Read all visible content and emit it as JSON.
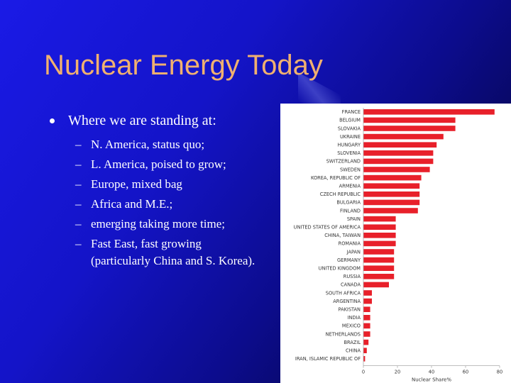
{
  "slide": {
    "title": "Nuclear Energy Today",
    "bullet": "Where we are standing at:",
    "sub_items": [
      "N. America, status quo;",
      "L. America, poised to grow;",
      "Europe, mixed bag",
      "Africa and M.E.;",
      "emerging taking more time;",
      "Fast East, fast growing (particularly China and S. Korea)."
    ],
    "dash": "–"
  },
  "chart_data": {
    "type": "bar",
    "orientation": "horizontal",
    "categories": [
      "FRANCE",
      "BELGIUM",
      "SLOVAKIA",
      "UKRAINE",
      "HUNGARY",
      "SLOVENIA",
      "SWITZERLAND",
      "SWEDEN",
      "KOREA, REPUBLIC OF",
      "ARMENIA",
      "CZECH REPUBLIC",
      "BULGARIA",
      "FINLAND",
      "SPAIN",
      "UNITED STATES OF AMERICA",
      "CHINA, TAIWAN",
      "ROMANIA",
      "JAPAN",
      "GERMANY",
      "UNITED KINGDOM",
      "RUSSIA",
      "CANADA",
      "SOUTH AFRICA",
      "ARGENTINA",
      "PAKISTAN",
      "INDIA",
      "MEXICO",
      "NETHERLANDS",
      "BRAZIL",
      "CHINA",
      "IRAN, ISLAMIC REPUBLIC OF"
    ],
    "values": [
      77,
      54,
      54,
      47,
      43,
      41,
      41,
      39,
      34,
      33,
      33,
      33,
      32,
      19,
      19,
      19,
      19,
      18,
      18,
      18,
      18,
      15,
      5,
      5,
      4,
      4,
      4,
      4,
      3,
      2,
      1
    ],
    "xlabel": "Nuclear Share%",
    "xticks": [
      0,
      20,
      40,
      60,
      80
    ],
    "xlim": [
      0,
      80
    ],
    "bar_color": "#e8202a",
    "grid": false
  }
}
